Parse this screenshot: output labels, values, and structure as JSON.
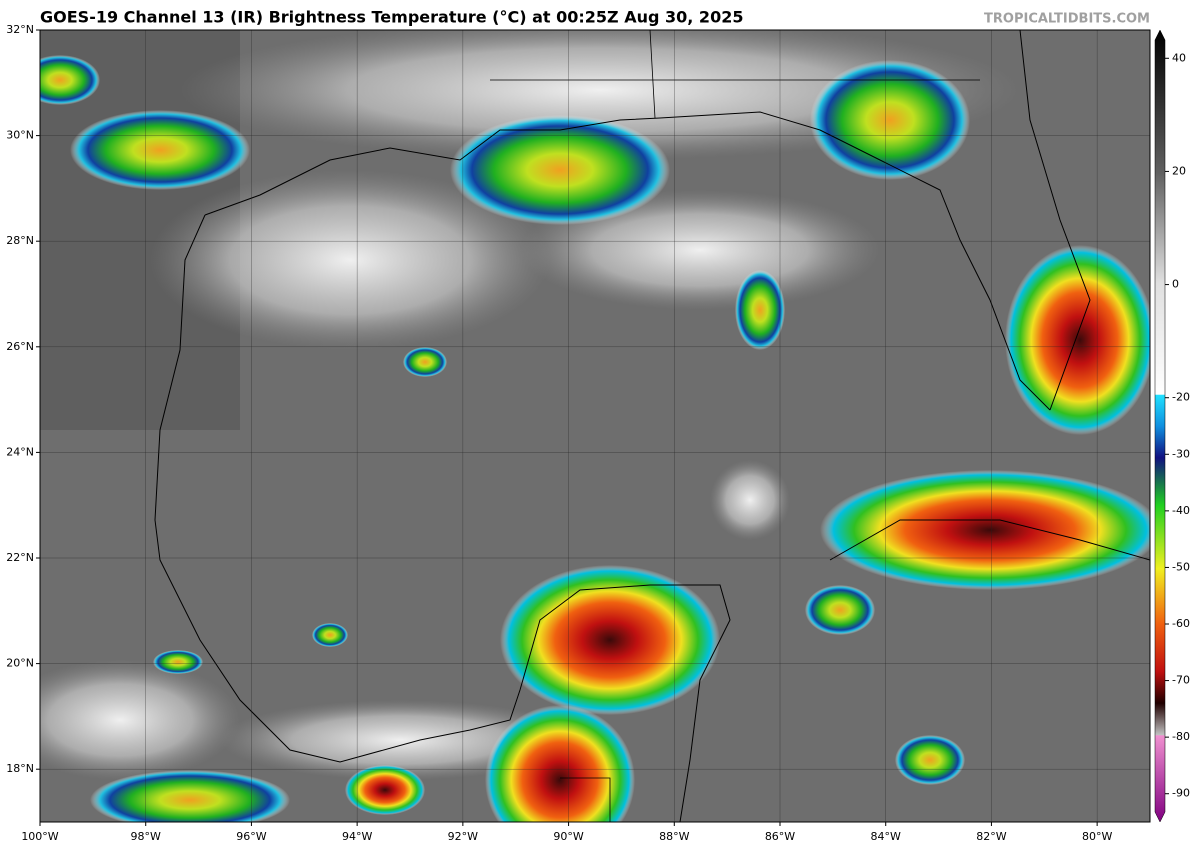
{
  "header": {
    "title": "GOES-19 Channel 13 (IR) Brightness Temperature (°C) at 00:25Z Aug 30, 2025",
    "credit": "TROPICALTIDBITS.COM"
  },
  "map": {
    "xlim": [
      -100,
      -79
    ],
    "ylim": [
      17,
      32
    ],
    "lat_ticks": [
      {
        "value": 18,
        "label": "18°N"
      },
      {
        "value": 20,
        "label": "20°N"
      },
      {
        "value": 22,
        "label": "22°N"
      },
      {
        "value": 24,
        "label": "24°N"
      },
      {
        "value": 26,
        "label": "26°N"
      },
      {
        "value": 28,
        "label": "28°N"
      },
      {
        "value": 30,
        "label": "30°N"
      },
      {
        "value": 32,
        "label": "32°N"
      }
    ],
    "lon_ticks": [
      {
        "value": -100,
        "label": "100°W"
      },
      {
        "value": -98,
        "label": "98°W"
      },
      {
        "value": -96,
        "label": "96°W"
      },
      {
        "value": -94,
        "label": "94°W"
      },
      {
        "value": -92,
        "label": "92°W"
      },
      {
        "value": -90,
        "label": "90°W"
      },
      {
        "value": -88,
        "label": "88°W"
      },
      {
        "value": -86,
        "label": "86°W"
      },
      {
        "value": -84,
        "label": "84°W"
      },
      {
        "value": -82,
        "label": "82°W"
      },
      {
        "value": -80,
        "label": "80°W"
      }
    ]
  },
  "colorbar": {
    "lim": [
      -95,
      45
    ],
    "ticks": [
      40,
      20,
      0,
      -20,
      -30,
      -40,
      -50,
      -60,
      -70,
      -80,
      -90
    ]
  }
}
